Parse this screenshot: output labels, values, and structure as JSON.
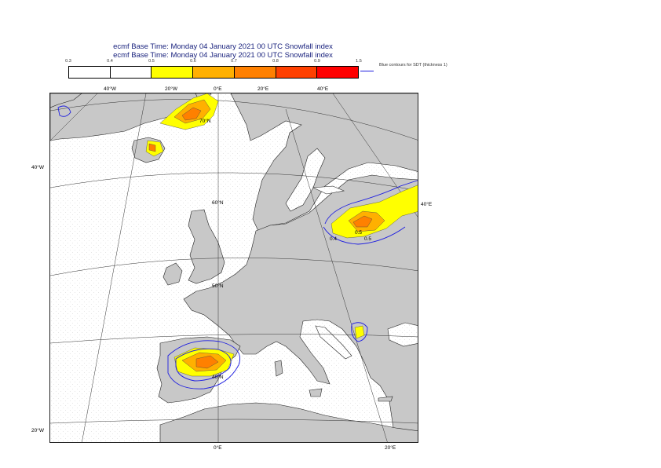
{
  "header": {
    "line1": "ecmf  Base Time: Monday 04 January 2021 00 UTC Snowfall index",
    "line2": "ecmf  Base Time: Monday 04 January 2021 00 UTC Snowfall index"
  },
  "legend": {
    "ticks": [
      "0.3",
      "0.4",
      "0.5",
      "0.6",
      "0.7",
      "0.8",
      "0.9",
      "1.5"
    ],
    "colors": [
      "#ffffff",
      "#ffffff",
      "#ffff00",
      "#ffb000",
      "#ff8000",
      "#ff4000",
      "#ff0000"
    ],
    "sdt_note": "Blue contours for SDT (thickness 1)",
    "sdt_color": "#1e1ee0"
  },
  "map": {
    "land_color": "#c8c8c8",
    "sea_color": "#ffffff",
    "top_labels": [
      "40°W",
      "20°W",
      "0°E",
      "20°E",
      "40°E"
    ],
    "bottom_labels": [
      "0°E",
      "20°E"
    ],
    "left_labels": [
      "40°W",
      "20°W"
    ],
    "right_labels": [
      "40°E"
    ],
    "lat_labels": [
      "70°N",
      "60°N",
      "50°N",
      "40°N"
    ],
    "contour_labels": [
      "0.5",
      "0.5",
      "0.4"
    ]
  }
}
